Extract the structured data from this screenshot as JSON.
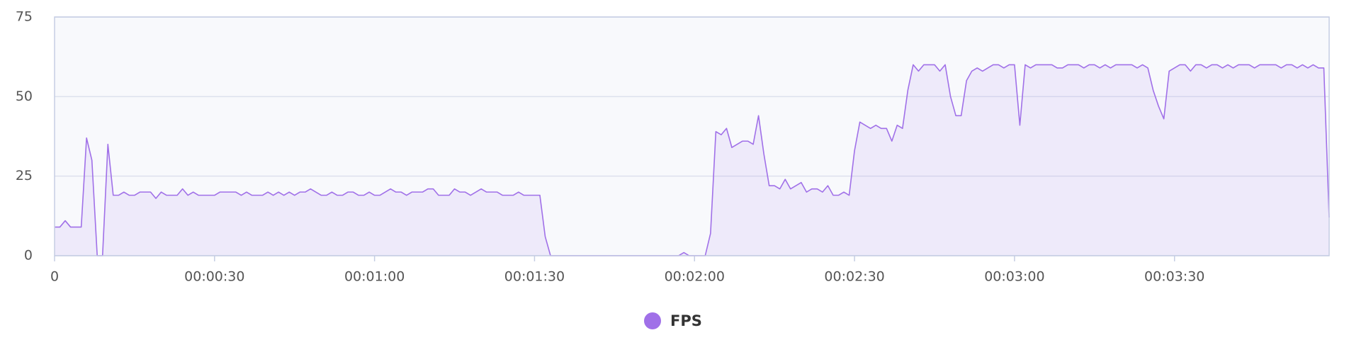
{
  "chart_data": {
    "type": "line",
    "x": [
      0,
      1,
      2,
      3,
      4,
      5,
      6,
      7,
      8,
      9,
      10,
      11,
      12,
      13,
      14,
      15,
      16,
      17,
      18,
      19,
      20,
      21,
      22,
      23,
      24,
      25,
      26,
      27,
      28,
      29,
      30,
      31,
      32,
      33,
      34,
      35,
      36,
      37,
      38,
      39,
      40,
      41,
      42,
      43,
      44,
      45,
      46,
      47,
      48,
      49,
      50,
      51,
      52,
      53,
      54,
      55,
      56,
      57,
      58,
      59,
      60,
      61,
      62,
      63,
      64,
      65,
      66,
      67,
      68,
      69,
      70,
      71,
      72,
      73,
      74,
      75,
      76,
      77,
      78,
      79,
      80,
      81,
      82,
      83,
      84,
      85,
      86,
      87,
      88,
      89,
      90,
      91,
      92,
      93,
      94,
      95,
      96,
      97,
      98,
      99,
      100,
      101,
      102,
      103,
      104,
      105,
      106,
      107,
      108,
      109,
      110,
      111,
      112,
      113,
      114,
      115,
      116,
      117,
      118,
      119,
      120,
      121,
      122,
      123,
      124,
      125,
      126,
      127,
      128,
      129,
      130,
      131,
      132,
      133,
      134,
      135,
      136,
      137,
      138,
      139,
      140,
      141,
      142,
      143,
      144,
      145,
      146,
      147,
      148,
      149,
      150,
      151,
      152,
      153,
      154,
      155,
      156,
      157,
      158,
      159,
      160,
      161,
      162,
      163,
      164,
      165,
      166,
      167,
      168,
      169,
      170,
      171,
      172,
      173,
      174,
      175,
      176,
      177,
      178,
      179,
      180,
      181,
      182,
      183,
      184,
      185,
      186,
      187,
      188,
      189,
      190,
      191,
      192,
      193,
      194,
      195,
      196,
      197,
      198,
      199,
      200,
      201,
      202,
      203,
      204,
      205,
      206,
      207,
      208,
      209,
      210,
      211,
      212,
      213,
      214,
      215,
      216,
      217,
      218,
      219,
      220,
      221,
      222,
      223,
      224,
      225,
      226,
      227,
      228,
      229,
      230,
      231,
      232,
      233,
      234,
      235,
      236,
      237,
      238,
      239
    ],
    "series": [
      {
        "name": "FPS",
        "color": "#a070e8",
        "values": [
          9,
          9,
          11,
          9,
          9,
          9,
          37,
          30,
          0,
          0,
          35,
          19,
          19,
          20,
          19,
          19,
          20,
          20,
          20,
          18,
          20,
          19,
          19,
          19,
          21,
          19,
          20,
          19,
          19,
          19,
          19,
          20,
          20,
          20,
          20,
          19,
          20,
          19,
          19,
          19,
          20,
          19,
          20,
          19,
          20,
          19,
          20,
          20,
          21,
          20,
          19,
          19,
          20,
          19,
          19,
          20,
          20,
          19,
          19,
          20,
          19,
          19,
          20,
          21,
          20,
          20,
          19,
          20,
          20,
          20,
          21,
          21,
          19,
          19,
          19,
          21,
          20,
          20,
          19,
          20,
          21,
          20,
          20,
          20,
          19,
          19,
          19,
          20,
          19,
          19,
          19,
          19,
          6,
          0,
          0,
          0,
          0,
          0,
          0,
          0,
          0,
          0,
          0,
          0,
          0,
          0,
          0,
          0,
          0,
          0,
          0,
          0,
          0,
          0,
          0,
          0,
          0,
          0,
          1,
          0,
          0,
          0,
          0,
          7,
          39,
          38,
          40,
          34,
          35,
          36,
          36,
          35,
          44,
          32,
          22,
          22,
          21,
          24,
          21,
          22,
          23,
          20,
          21,
          21,
          20,
          22,
          19,
          19,
          20,
          19,
          33,
          42,
          41,
          40,
          41,
          40,
          40,
          36,
          41,
          40,
          52,
          60,
          58,
          60,
          60,
          60,
          58,
          60,
          50,
          44,
          44,
          55,
          58,
          59,
          58,
          59,
          60,
          60,
          59,
          60,
          60,
          41,
          60,
          59,
          60,
          60,
          60,
          60,
          59,
          59,
          60,
          60,
          60,
          59,
          60,
          60,
          59,
          60,
          59,
          60,
          60,
          60,
          60,
          59,
          60,
          59,
          52,
          47,
          43,
          58,
          59,
          60,
          60,
          58,
          60,
          60,
          59,
          60,
          60,
          59,
          60,
          59,
          60,
          60,
          60,
          59,
          60,
          60,
          60,
          60,
          59,
          60,
          60,
          59,
          60,
          59,
          60,
          59,
          59,
          12
        ]
      }
    ],
    "xlim": [
      0,
      239
    ],
    "xticks": [
      0,
      {
        "value": 30,
        "label": "00:00:30"
      },
      {
        "value": 60,
        "label": "00:01:00"
      },
      {
        "value": 90,
        "label": "00:01:30"
      },
      {
        "value": 120,
        "label": "00:02:00"
      },
      {
        "value": 150,
        "label": "00:02:30"
      },
      {
        "value": 180,
        "label": "00:03:00"
      },
      {
        "value": 210,
        "label": "00:03:30"
      }
    ],
    "ylim": [
      0,
      75
    ],
    "yticks": [
      0,
      25,
      50,
      75
    ],
    "grid": true,
    "legend": "bottom"
  }
}
